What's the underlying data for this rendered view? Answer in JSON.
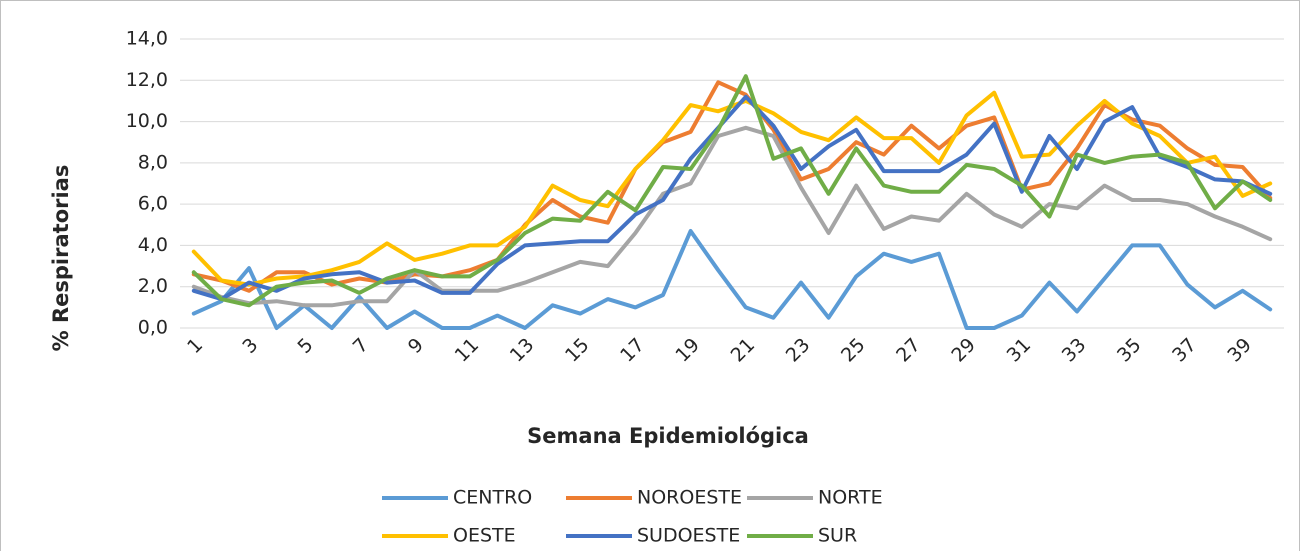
{
  "chart_data": {
    "type": "line",
    "y_label": "% Respiratorias",
    "x_label": "Semana Epidemiológica",
    "categories": [
      1,
      null,
      3,
      null,
      5,
      null,
      7,
      null,
      9,
      null,
      11,
      null,
      13,
      null,
      15,
      null,
      17,
      null,
      19,
      null,
      21,
      null,
      23,
      null,
      25,
      null,
      27,
      null,
      29,
      null,
      31,
      null,
      33,
      null,
      35,
      null,
      37,
      null,
      39,
      null
    ],
    "ylim": [
      0,
      14
    ],
    "yticks": [
      {
        "value": 0,
        "label": "0,0"
      },
      {
        "value": 2,
        "label": "2,0"
      },
      {
        "value": 4,
        "label": "4,0"
      },
      {
        "value": 6,
        "label": "6,0"
      },
      {
        "value": 8,
        "label": "8,0"
      },
      {
        "value": 10,
        "label": "10,0"
      },
      {
        "value": 12,
        "label": "12,0"
      },
      {
        "value": 14,
        "label": "14,0"
      }
    ],
    "grid": true,
    "legend": "bottom",
    "series": [
      {
        "name": "CENTRO",
        "color": "#5b9bd5",
        "values": [
          0.7,
          1.3,
          2.9,
          0.0,
          1.1,
          0.0,
          1.5,
          0.0,
          0.8,
          0.0,
          0.0,
          0.6,
          0.0,
          1.1,
          0.7,
          1.4,
          1.0,
          1.6,
          4.7,
          2.8,
          1.0,
          0.5,
          2.2,
          0.5,
          2.5,
          3.6,
          3.2,
          3.6,
          0.0,
          0.0,
          0.6,
          2.2,
          0.8,
          2.4,
          4.0,
          4.0,
          2.1,
          1.0,
          1.8,
          0.9
        ]
      },
      {
        "name": "NOROESTE",
        "color": "#ed7d31",
        "values": [
          2.6,
          2.3,
          1.8,
          2.7,
          2.7,
          2.1,
          2.4,
          2.2,
          2.6,
          2.5,
          2.8,
          3.3,
          5.0,
          6.2,
          5.4,
          5.1,
          7.7,
          9.0,
          9.5,
          11.9,
          11.3,
          9.6,
          7.2,
          7.7,
          9.0,
          8.4,
          9.8,
          8.7,
          9.8,
          10.2,
          6.7,
          7.0,
          8.7,
          10.8,
          10.1,
          9.8,
          8.7,
          7.9,
          7.8,
          6.3
        ]
      },
      {
        "name": "NORTE",
        "color": "#a5a5a5",
        "values": [
          2.0,
          1.5,
          1.2,
          1.3,
          1.1,
          1.1,
          1.3,
          1.3,
          2.8,
          1.8,
          1.8,
          1.8,
          2.2,
          2.7,
          3.2,
          3.0,
          4.6,
          6.5,
          7.0,
          9.3,
          9.7,
          9.3,
          6.8,
          4.6,
          6.9,
          4.8,
          5.4,
          5.2,
          6.5,
          5.5,
          4.9,
          6.0,
          5.8,
          6.9,
          6.2,
          6.2,
          6.0,
          5.4,
          4.9,
          4.3
        ]
      },
      {
        "name": "OESTE",
        "color": "#ffc000",
        "values": [
          3.7,
          2.3,
          2.1,
          2.4,
          2.5,
          2.8,
          3.2,
          4.1,
          3.3,
          3.6,
          4.0,
          4.0,
          4.9,
          6.9,
          6.2,
          5.9,
          7.7,
          9.1,
          10.8,
          10.5,
          11.0,
          10.4,
          9.5,
          9.1,
          10.2,
          9.2,
          9.2,
          8.0,
          10.3,
          11.4,
          8.3,
          8.4,
          9.8,
          11.0,
          9.9,
          9.3,
          8.0,
          8.3,
          6.4,
          7.0
        ]
      },
      {
        "name": "SUDOESTE",
        "color": "#4472c4",
        "values": [
          1.8,
          1.4,
          2.2,
          1.8,
          2.4,
          2.6,
          2.7,
          2.2,
          2.3,
          1.7,
          1.7,
          3.1,
          4.0,
          4.1,
          4.2,
          4.2,
          5.5,
          6.2,
          8.2,
          9.7,
          11.2,
          9.8,
          7.7,
          8.8,
          9.6,
          7.6,
          7.6,
          7.6,
          8.4,
          9.9,
          6.6,
          9.3,
          7.7,
          10.0,
          10.7,
          8.3,
          7.8,
          7.2,
          7.1,
          6.5
        ]
      },
      {
        "name": "SUR",
        "color": "#70ad47",
        "values": [
          2.7,
          1.4,
          1.1,
          2.0,
          2.2,
          2.3,
          1.7,
          2.4,
          2.8,
          2.5,
          2.5,
          3.3,
          4.6,
          5.3,
          5.2,
          6.6,
          5.7,
          7.8,
          7.7,
          9.6,
          12.2,
          8.2,
          8.7,
          6.5,
          8.7,
          6.9,
          6.6,
          6.6,
          7.9,
          7.7,
          6.9,
          5.4,
          8.4,
          8.0,
          8.3,
          8.4,
          8.0,
          5.8,
          7.1,
          6.2
        ]
      }
    ]
  }
}
